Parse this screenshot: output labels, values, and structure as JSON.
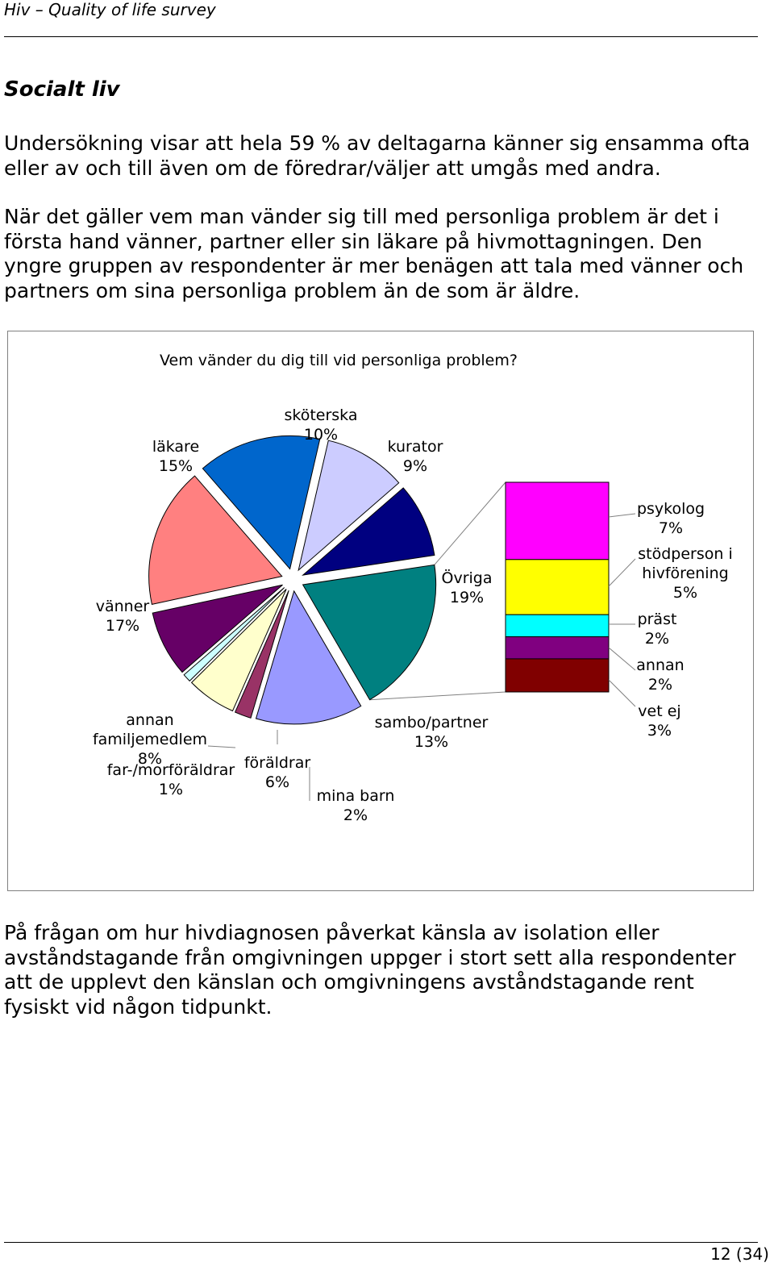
{
  "header": {
    "title": "Hiv – Quality of life survey"
  },
  "section": {
    "title": "Socialt liv"
  },
  "paragraphs": {
    "p1": "Undersökning visar att hela 59 % av deltagarna känner sig ensamma ofta eller av och till även om de föredrar/väljer att umgås med andra.",
    "p2": "När det gäller vem man vänder sig till med personliga problem är det i första hand vänner, partner eller sin läkare på hivmottagningen. Den yngre gruppen av respondenter är mer benägen att tala med vänner och partners om sina personliga problem än de som är äldre.",
    "p3": "På frågan om hur hivdiagnosen påverkat känsla av isolation eller avståndstagande från omgivningen uppger i stort sett alla respondenter att de upplevt den känslan och omgivningens avståndstagande rent fysiskt vid någon tidpunkt."
  },
  "chart_data": {
    "type": "pie",
    "title": "Vem vänder du dig till vid personliga problem?",
    "slices": [
      {
        "key": "skoterska",
        "name": "sköterska",
        "value": 10,
        "label": "10%",
        "color": "#ccccff"
      },
      {
        "key": "kurator",
        "name": "kurator",
        "value": 9,
        "label": "9%",
        "color": "#000080"
      },
      {
        "key": "ovriga",
        "name": "Övriga",
        "value": 19,
        "label": "19%",
        "color": "#008080"
      },
      {
        "key": "sambo",
        "name": "sambo/partner",
        "value": 13,
        "label": "13%",
        "color": "#9999ff"
      },
      {
        "key": "minabarn",
        "name": "mina barn",
        "value": 2,
        "label": "2%",
        "color": "#993366"
      },
      {
        "key": "foraldrar",
        "name": "föräldrar",
        "value": 6,
        "label": "6%",
        "color": "#ffffcc"
      },
      {
        "key": "farmor",
        "name": "far-/morföräldrar",
        "value": 1,
        "label": "1%",
        "color": "#ccffff"
      },
      {
        "key": "annanfam",
        "name": "annan familjemedlem",
        "value": 8,
        "label": "8%",
        "color": "#660066"
      },
      {
        "key": "vanner",
        "name": "vänner",
        "value": 17,
        "label": "17%",
        "color": "#ff8080"
      },
      {
        "key": "lakare",
        "name": "läkare",
        "value": 15,
        "label": "15%",
        "color": "#0066cc"
      }
    ],
    "breakdown": {
      "of": "Övriga",
      "items": [
        {
          "key": "psykolog",
          "name": "psykolog",
          "value": 7,
          "label": "7%",
          "color": "#ff00ff"
        },
        {
          "key": "stodperson",
          "name": "stödperson i hivförening",
          "value": 5,
          "label": "5%",
          "color": "#ffff00"
        },
        {
          "key": "prast",
          "name": "präst",
          "value": 2,
          "label": "2%",
          "color": "#00ffff"
        },
        {
          "key": "annan",
          "name": "annan",
          "value": 2,
          "label": "2%",
          "color": "#800080"
        },
        {
          "key": "vetej",
          "name": "vet ej",
          "value": 3,
          "label": "3%",
          "color": "#800000"
        }
      ]
    },
    "legend": "none"
  },
  "footer": {
    "page": "12 (34)"
  }
}
